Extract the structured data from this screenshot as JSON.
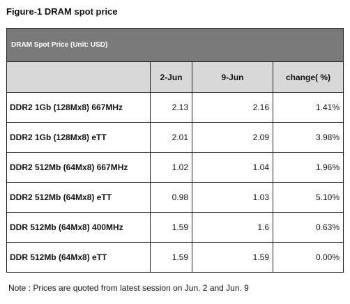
{
  "figure_title": "Figure-1 DRAM spot price",
  "table": {
    "caption": "DRAM Spot Price (Unit: USD)",
    "columns": [
      "",
      "2-Jun",
      "9-Jun",
      "change( %)"
    ],
    "rows": [
      {
        "name": "DDR2 1Gb (128Mx8) 667MHz",
        "jun2": "2.13",
        "jun9": "2.16",
        "change": "1.41%"
      },
      {
        "name": "DDR2 1Gb (128Mx8) eTT",
        "jun2": "2.01",
        "jun9": "2.09",
        "change": "3.98%"
      },
      {
        "name": "DDR2 512Mb (64Mx8) 667MHz",
        "jun2": "1.02",
        "jun9": "1.04",
        "change": "1.96%"
      },
      {
        "name": "DDR2 512Mb (64Mx8) eTT",
        "jun2": "0.98",
        "jun9": "1.03",
        "change": "5.10%"
      },
      {
        "name": "DDR 512Mb (64Mx8) 400MHz",
        "jun2": "1.59",
        "jun9": "1.6",
        "change": "0.63%"
      },
      {
        "name": "DDR 512Mb (64Mx8) eTT",
        "jun2": "1.59",
        "jun9": "1.59",
        "change": "0.00%"
      }
    ]
  },
  "note": "Note : Prices are quoted from latest session on Jun. 2 and Jun. 9"
}
